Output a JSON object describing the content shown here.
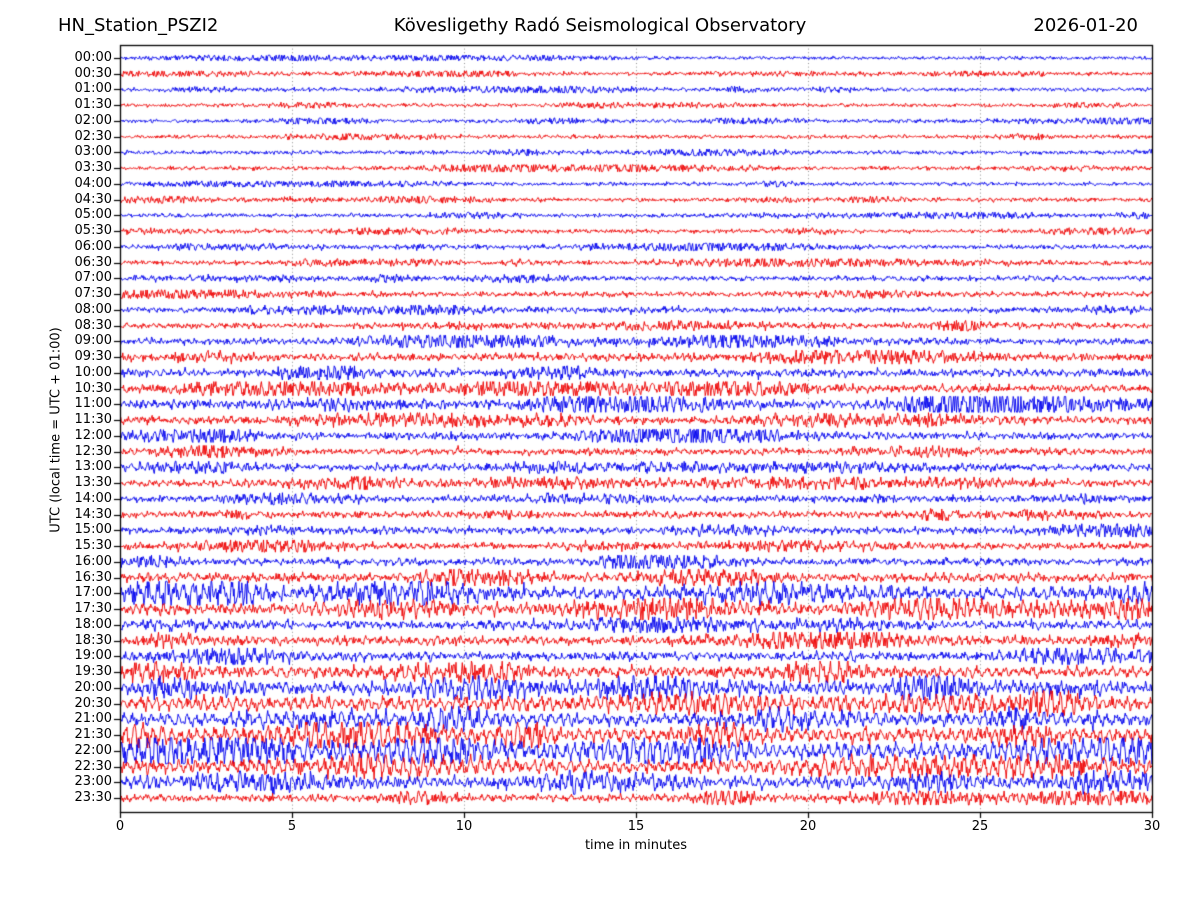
{
  "header": {
    "station": "HN_Station_PSZI2",
    "observatory": "Kövesligethy Radó Seismological Observatory",
    "date": "2026-01-20"
  },
  "axes": {
    "x_label": "time in minutes",
    "y_label": "UTC (local time = UTC + 01:00)",
    "x_tick_labels": [
      "0",
      "5",
      "10",
      "15",
      "20",
      "25",
      "30"
    ],
    "x_tick_minutes": [
      0,
      5,
      10,
      15,
      20,
      25,
      30
    ],
    "grid_minutes": [
      5,
      10,
      15,
      20,
      25
    ],
    "x_range_minutes": [
      0,
      30
    ]
  },
  "colors": {
    "trace_even": "#0000ee",
    "trace_odd": "#ee0000",
    "grid": "#888888",
    "frame": "#000000",
    "background": "#ffffff"
  },
  "chart_data": {
    "type": "line",
    "subtype": "helicorder-dayplot",
    "title": "HN_Station_PSZI2 — Kövesligethy Radó Seismological Observatory — 2026-01-20",
    "xlabel": "time in minutes",
    "ylabel": "UTC (local time = UTC + 01:00)",
    "x_range_minutes": [
      0,
      30
    ],
    "minutes_per_row": 30,
    "row_count": 48,
    "legend": "none",
    "grid": "vertical-dotted-every-5-min",
    "amplitude_units": "relative trace half-amplitude (px), estimated from plot",
    "rows": [
      {
        "time": "00:00",
        "color": "blue",
        "amplitude": 1.3
      },
      {
        "time": "00:30",
        "color": "red",
        "amplitude": 1.3
      },
      {
        "time": "01:00",
        "color": "blue",
        "amplitude": 1.5
      },
      {
        "time": "01:30",
        "color": "red",
        "amplitude": 1.4
      },
      {
        "time": "02:00",
        "color": "blue",
        "amplitude": 1.4
      },
      {
        "time": "02:30",
        "color": "red",
        "amplitude": 1.5
      },
      {
        "time": "03:00",
        "color": "blue",
        "amplitude": 1.5
      },
      {
        "time": "03:30",
        "color": "red",
        "amplitude": 1.6
      },
      {
        "time": "04:00",
        "color": "blue",
        "amplitude": 1.4
      },
      {
        "time": "04:30",
        "color": "red",
        "amplitude": 1.6
      },
      {
        "time": "05:00",
        "color": "blue",
        "amplitude": 1.5
      },
      {
        "time": "05:30",
        "color": "red",
        "amplitude": 1.6
      },
      {
        "time": "06:00",
        "color": "blue",
        "amplitude": 1.7
      },
      {
        "time": "06:30",
        "color": "red",
        "amplitude": 1.8
      },
      {
        "time": "07:00",
        "color": "blue",
        "amplitude": 2.0
      },
      {
        "time": "07:30",
        "color": "red",
        "amplitude": 2.0
      },
      {
        "time": "08:00",
        "color": "blue",
        "amplitude": 2.2
      },
      {
        "time": "08:30",
        "color": "red",
        "amplitude": 2.4
      },
      {
        "time": "09:00",
        "color": "blue",
        "amplitude": 2.8
      },
      {
        "time": "09:30",
        "color": "red",
        "amplitude": 3.2
      },
      {
        "time": "10:00",
        "color": "blue",
        "amplitude": 3.2
      },
      {
        "time": "10:30",
        "color": "red",
        "amplitude": 3.2
      },
      {
        "time": "11:00",
        "color": "blue",
        "amplitude": 3.6
      },
      {
        "time": "11:30",
        "color": "red",
        "amplitude": 3.4
      },
      {
        "time": "12:00",
        "color": "blue",
        "amplitude": 3.0
      },
      {
        "time": "12:30",
        "color": "red",
        "amplitude": 2.8
      },
      {
        "time": "13:00",
        "color": "blue",
        "amplitude": 2.8
      },
      {
        "time": "13:30",
        "color": "red",
        "amplitude": 3.0
      },
      {
        "time": "14:00",
        "color": "blue",
        "amplitude": 2.8
      },
      {
        "time": "14:30",
        "color": "red",
        "amplitude": 2.8
      },
      {
        "time": "15:00",
        "color": "blue",
        "amplitude": 3.0
      },
      {
        "time": "15:30",
        "color": "red",
        "amplitude": 2.8
      },
      {
        "time": "16:00",
        "color": "blue",
        "amplitude": 3.0
      },
      {
        "time": "16:30",
        "color": "red",
        "amplitude": 3.8
      },
      {
        "time": "17:00",
        "color": "blue",
        "amplitude": 5.5
      },
      {
        "time": "17:30",
        "color": "red",
        "amplitude": 5.0
      },
      {
        "time": "18:00",
        "color": "blue",
        "amplitude": 3.6
      },
      {
        "time": "18:30",
        "color": "red",
        "amplitude": 3.8
      },
      {
        "time": "19:00",
        "color": "blue",
        "amplitude": 3.8
      },
      {
        "time": "19:30",
        "color": "red",
        "amplitude": 5.0
      },
      {
        "time": "20:00",
        "color": "blue",
        "amplitude": 5.5
      },
      {
        "time": "20:30",
        "color": "red",
        "amplitude": 6.5
      },
      {
        "time": "21:00",
        "color": "blue",
        "amplitude": 6.0
      },
      {
        "time": "21:30",
        "color": "red",
        "amplitude": 6.5
      },
      {
        "time": "22:00",
        "color": "blue",
        "amplitude": 7.0
      },
      {
        "time": "22:30",
        "color": "red",
        "amplitude": 6.5
      },
      {
        "time": "23:00",
        "color": "blue",
        "amplitude": 5.5
      },
      {
        "time": "23:30",
        "color": "red",
        "amplitude": 3.2
      }
    ]
  }
}
